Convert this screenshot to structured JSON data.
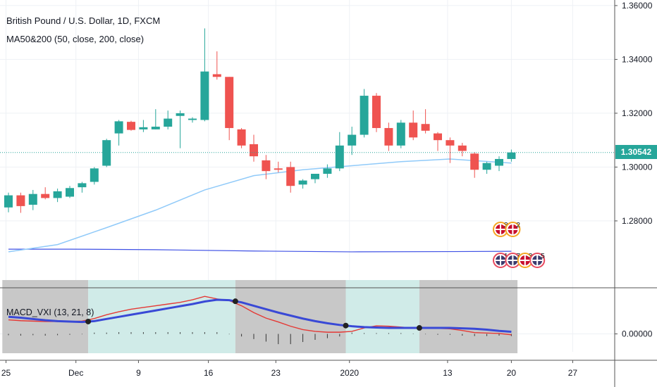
{
  "header": {
    "symbol": "British Pound / U.S. Dollar, 1D, FXCM",
    "indicator": "MA50&200 (50, close, 200, close)",
    "macd_label": "MACD_VXI (13, 21, 8)",
    "last_price": "1.30542"
  },
  "colors": {
    "up": "#26a69a",
    "down": "#ef5350",
    "ma50": "#90caf9",
    "ma200": "#3f51e5",
    "macd_fast": "#3949d6",
    "macd_signal": "#e53935",
    "shade_gray": "#c8c8c8",
    "shade_teal": "#d0ebe8",
    "grid": "#eef1f5",
    "last_line": "#26a69a",
    "event_ring": "#f5a623",
    "event_us": "#e84a5f"
  },
  "chart_data": [
    {
      "type": "candlestick",
      "title": "British Pound / U.S. Dollar, 1D, FXCM",
      "x_ticks": [
        "25",
        "Dec",
        "9",
        "16",
        "23",
        "2020",
        "13",
        "20",
        "27"
      ],
      "y_ticks": [
        "1.36000",
        "1.34000",
        "1.32000",
        "1.30000",
        "1.28000"
      ],
      "ylim": [
        1.2575,
        1.3605
      ],
      "last_price": 1.30542,
      "candles": [
        {
          "x": 0,
          "o": 1.285,
          "h": 1.2905,
          "l": 1.2832,
          "c": 1.2895
        },
        {
          "x": 1,
          "o": 1.2895,
          "h": 1.2905,
          "l": 1.283,
          "c": 1.2855
        },
        {
          "x": 2,
          "o": 1.286,
          "h": 1.2915,
          "l": 1.284,
          "c": 1.29
        },
        {
          "x": 3,
          "o": 1.29,
          "h": 1.2925,
          "l": 1.288,
          "c": 1.2885
        },
        {
          "x": 4,
          "o": 1.2885,
          "h": 1.292,
          "l": 1.287,
          "c": 1.291
        },
        {
          "x": 5,
          "o": 1.289,
          "h": 1.293,
          "l": 1.2885,
          "c": 1.2922
        },
        {
          "x": 6,
          "o": 1.2925,
          "h": 1.2945,
          "l": 1.2905,
          "c": 1.294
        },
        {
          "x": 7,
          "o": 1.2945,
          "h": 1.3,
          "l": 1.2935,
          "c": 1.2995
        },
        {
          "x": 8,
          "o": 1.3005,
          "h": 1.3105,
          "l": 1.3,
          "c": 1.31
        },
        {
          "x": 9,
          "o": 1.3125,
          "h": 1.3175,
          "l": 1.308,
          "c": 1.317
        },
        {
          "x": 10,
          "o": 1.3168,
          "h": 1.3172,
          "l": 1.3135,
          "c": 1.3138
        },
        {
          "x": 11,
          "o": 1.314,
          "h": 1.3175,
          "l": 1.313,
          "c": 1.3148
        },
        {
          "x": 12,
          "o": 1.314,
          "h": 1.3215,
          "l": 1.314,
          "c": 1.315
        },
        {
          "x": 13,
          "o": 1.315,
          "h": 1.321,
          "l": 1.314,
          "c": 1.318
        },
        {
          "x": 14,
          "o": 1.319,
          "h": 1.321,
          "l": 1.307,
          "c": 1.32
        },
        {
          "x": 15,
          "o": 1.3175,
          "h": 1.3185,
          "l": 1.3165,
          "c": 1.318
        },
        {
          "x": 16,
          "o": 1.3175,
          "h": 1.3515,
          "l": 1.317,
          "c": 1.3355
        },
        {
          "x": 17,
          "o": 1.3345,
          "h": 1.343,
          "l": 1.3325,
          "c": 1.3335
        },
        {
          "x": 18,
          "o": 1.3335,
          "h": 1.3335,
          "l": 1.31,
          "c": 1.3145
        },
        {
          "x": 19,
          "o": 1.314,
          "h": 1.3145,
          "l": 1.307,
          "c": 1.308
        },
        {
          "x": 20,
          "o": 1.3085,
          "h": 1.312,
          "l": 1.302,
          "c": 1.304
        },
        {
          "x": 21,
          "o": 1.3025,
          "h": 1.3045,
          "l": 1.2955,
          "c": 1.2985
        },
        {
          "x": 22,
          "o": 1.2995,
          "h": 1.302,
          "l": 1.298,
          "c": 1.299
        },
        {
          "x": 23,
          "o": 1.3,
          "h": 1.302,
          "l": 1.2905,
          "c": 1.293
        },
        {
          "x": 24,
          "o": 1.2935,
          "h": 1.2955,
          "l": 1.292,
          "c": 1.295
        },
        {
          "x": 25,
          "o": 1.2955,
          "h": 1.2975,
          "l": 1.294,
          "c": 1.2975
        },
        {
          "x": 26,
          "o": 1.2975,
          "h": 1.301,
          "l": 1.296,
          "c": 1.2995
        },
        {
          "x": 27,
          "o": 1.2995,
          "h": 1.313,
          "l": 1.2985,
          "c": 1.308
        },
        {
          "x": 28,
          "o": 1.308,
          "h": 1.315,
          "l": 1.3045,
          "c": 1.312
        },
        {
          "x": 29,
          "o": 1.312,
          "h": 1.329,
          "l": 1.311,
          "c": 1.3265
        },
        {
          "x": 30,
          "o": 1.3265,
          "h": 1.3275,
          "l": 1.313,
          "c": 1.3145
        },
        {
          "x": 31,
          "o": 1.3145,
          "h": 1.3165,
          "l": 1.306,
          "c": 1.308
        },
        {
          "x": 32,
          "o": 1.308,
          "h": 1.3175,
          "l": 1.307,
          "c": 1.3165
        },
        {
          "x": 33,
          "o": 1.3165,
          "h": 1.321,
          "l": 1.31,
          "c": 1.311
        },
        {
          "x": 34,
          "o": 1.316,
          "h": 1.3215,
          "l": 1.3125,
          "c": 1.3135
        },
        {
          "x": 35,
          "o": 1.3125,
          "h": 1.313,
          "l": 1.306,
          "c": 1.31
        },
        {
          "x": 36,
          "o": 1.31,
          "h": 1.311,
          "l": 1.3015,
          "c": 1.308
        },
        {
          "x": 37,
          "o": 1.308,
          "h": 1.309,
          "l": 1.304,
          "c": 1.306
        },
        {
          "x": 38,
          "o": 1.305,
          "h": 1.3055,
          "l": 1.296,
          "c": 1.299
        },
        {
          "x": 39,
          "o": 1.299,
          "h": 1.302,
          "l": 1.2975,
          "c": 1.3015
        },
        {
          "x": 40,
          "o": 1.3005,
          "h": 1.304,
          "l": 1.2985,
          "c": 1.303
        },
        {
          "x": 41,
          "o": 1.303,
          "h": 1.3065,
          "l": 1.302,
          "c": 1.3054
        }
      ],
      "ma50": [
        {
          "x": 0,
          "y": 1.2685
        },
        {
          "x": 4,
          "y": 1.2712
        },
        {
          "x": 8,
          "y": 1.2775
        },
        {
          "x": 12,
          "y": 1.284
        },
        {
          "x": 16,
          "y": 1.2915
        },
        {
          "x": 20,
          "y": 1.2968
        },
        {
          "x": 24,
          "y": 1.299
        },
        {
          "x": 28,
          "y": 1.3005
        },
        {
          "x": 32,
          "y": 1.302
        },
        {
          "x": 36,
          "y": 1.303
        },
        {
          "x": 41,
          "y": 1.3015
        }
      ],
      "ma200": [
        {
          "x": 0,
          "y": 1.2695
        },
        {
          "x": 5,
          "y": 1.2695
        },
        {
          "x": 12,
          "y": 1.2693
        },
        {
          "x": 20,
          "y": 1.2688
        },
        {
          "x": 28,
          "y": 1.2685
        },
        {
          "x": 36,
          "y": 1.2686
        },
        {
          "x": 41,
          "y": 1.2687
        }
      ],
      "events_row1": [
        {
          "x": 40,
          "country": "GB",
          "count": "3"
        },
        {
          "x": 41,
          "country": "GB",
          "count": "2"
        }
      ],
      "events_row2": [
        {
          "x": 40,
          "country": "US",
          "count": "14"
        },
        {
          "x": 41,
          "country": "US",
          "count": "7"
        },
        {
          "x": 42,
          "country": "GB",
          "count": "3"
        },
        {
          "x": 43,
          "country": "US",
          "count": "5"
        }
      ]
    },
    {
      "type": "line",
      "title": "MACD_VXI (13, 21, 8)",
      "y_ticks": [
        "0.00000"
      ],
      "ylim": [
        -0.0042,
        0.009
      ],
      "zones": [
        {
          "from": -0.5,
          "to": 6.5,
          "color": "gray"
        },
        {
          "from": 6.5,
          "to": 18.5,
          "color": "teal"
        },
        {
          "from": 18.5,
          "to": 27.5,
          "color": "gray"
        },
        {
          "from": 27.5,
          "to": 33.5,
          "color": "teal"
        },
        {
          "from": 33.5,
          "to": 41.5,
          "color": "gray"
        }
      ],
      "series": [
        {
          "role": "fast",
          "values": [
            0.004,
            0.0038,
            0.0035,
            0.0032,
            0.003,
            0.0029,
            0.0028,
            0.003,
            0.0035,
            0.004,
            0.0045,
            0.005,
            0.0055,
            0.006,
            0.0065,
            0.007,
            0.0076,
            0.008,
            0.0079,
            0.0074,
            0.0066,
            0.0058,
            0.005,
            0.0043,
            0.0036,
            0.003,
            0.0025,
            0.0021,
            0.0018,
            0.0016,
            0.0015,
            0.0014,
            0.0014,
            0.0014,
            0.0014,
            0.0014,
            0.0014,
            0.0013,
            0.0012,
            0.001,
            0.0007,
            0.0005
          ]
        },
        {
          "role": "signal",
          "values": [
            0.0033,
            0.0031,
            0.003,
            0.0029,
            0.0029,
            0.0029,
            0.003,
            0.0036,
            0.0045,
            0.0052,
            0.0058,
            0.0062,
            0.0066,
            0.007,
            0.0074,
            0.008,
            0.0088,
            0.0082,
            0.0078,
            0.0066,
            0.005,
            0.0037,
            0.0028,
            0.0018,
            0.001,
            0.0006,
            0.0004,
            0.0004,
            0.0006,
            0.0014,
            0.0019,
            0.0018,
            0.0016,
            0.0014,
            0.0014,
            0.0013,
            0.0012,
            0.0008,
            0.0003,
            0.0002,
            0.0001,
            -0.0002
          ]
        },
        {
          "role": "histogram",
          "values": [
            -0.0003,
            -0.0004,
            -0.0003,
            -0.0004,
            -0.0003,
            -0.0002,
            -0.0001,
            0.0003,
            0.0003,
            0.0004,
            0.0004,
            0.0004,
            0.0004,
            0.0004,
            0.0004,
            0.0004,
            0.0004,
            0.0004,
            -0.0001,
            -0.0006,
            -0.0012,
            -0.0018,
            -0.0024,
            -0.0024,
            -0.0019,
            -0.0014,
            -0.001,
            -0.0006,
            0.0003,
            0.0002,
            0.0002,
            0.0002,
            0.0002,
            0.0001,
            -0.0001,
            -0.0002,
            -0.0002,
            -0.0004,
            -0.0005,
            -0.0005,
            -0.0004,
            -0.0005
          ]
        }
      ],
      "crosses": [
        {
          "x": 6.5
        },
        {
          "x": 18.5
        },
        {
          "x": 27.5
        },
        {
          "x": 33.5
        }
      ]
    }
  ]
}
